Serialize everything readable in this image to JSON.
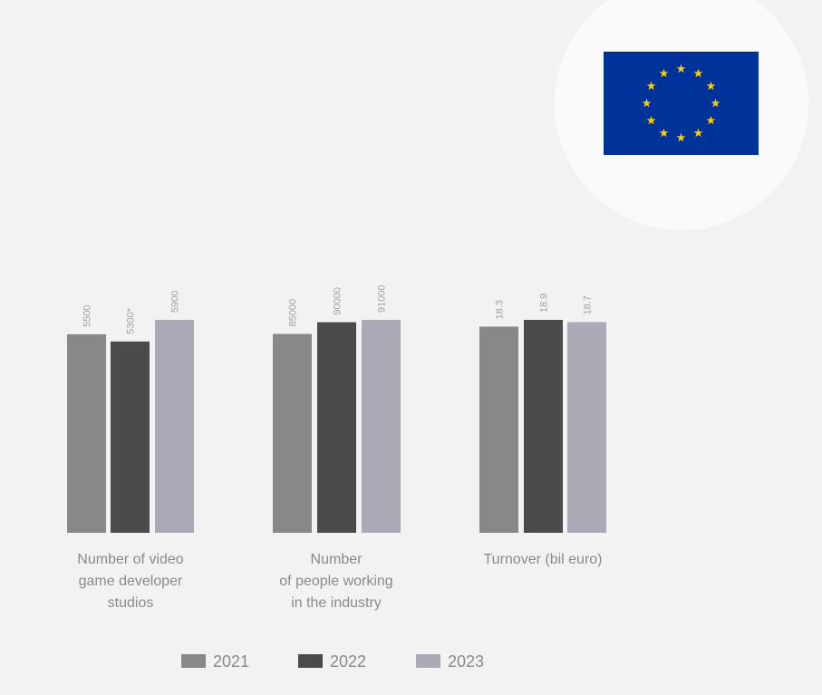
{
  "colors": {
    "background": "#f2f2f2",
    "series": [
      "#888888",
      "#4b4b4b",
      "#aca8b5"
    ],
    "bar_label": "#a3a3a3",
    "flag_blue": "#003399",
    "flag_star": "#ffcc00"
  },
  "chart_data": [
    {
      "type": "bar",
      "categories": [
        "2021",
        "2022",
        "2023"
      ],
      "values": [
        5500,
        5300,
        5900
      ],
      "value_labels": [
        "5500",
        "5300*",
        "5900"
      ],
      "ylim": [
        0,
        5900
      ],
      "xlabel": "Number of video game developer studios"
    },
    {
      "type": "bar",
      "categories": [
        "2021",
        "2022",
        "2023"
      ],
      "values": [
        85000,
        90000,
        91000
      ],
      "value_labels": [
        "85000",
        "90000",
        "91000"
      ],
      "ylim": [
        0,
        91000
      ],
      "xlabel": "Number of people working in the industry"
    },
    {
      "type": "bar",
      "categories": [
        "2021",
        "2022",
        "2023"
      ],
      "values": [
        18.3,
        18.9,
        18.7
      ],
      "value_labels": [
        "18.3",
        "18.9",
        "18.7"
      ],
      "ylim": [
        0,
        18.9
      ],
      "xlabel": "Turnover (bil euro)"
    }
  ],
  "labels": {
    "g1": [
      "Number of video",
      "game developer",
      "studios"
    ],
    "g2": [
      "Number",
      "of people working",
      "in the industry"
    ],
    "g3": [
      "Turnover (bil euro)"
    ]
  },
  "legend": [
    "2021",
    "2022",
    "2023"
  ],
  "flag_icon": "eu-flag-icon"
}
